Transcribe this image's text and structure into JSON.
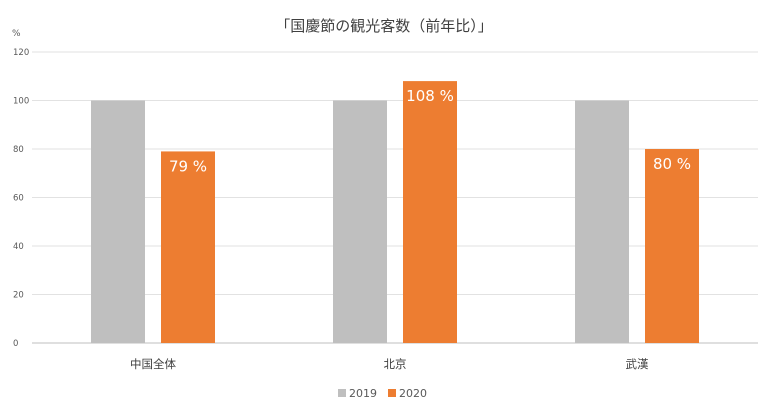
{
  "chart_data": {
    "type": "bar",
    "title": "「国慶節の観光客数（前年比）」",
    "ylabel": "%",
    "xlabel": "",
    "ylim": [
      0,
      120
    ],
    "yticks": [
      0,
      20,
      40,
      60,
      80,
      100,
      120
    ],
    "grid": true,
    "legend_position": "bottom",
    "categories": [
      "中国全体",
      "北京",
      "武漢"
    ],
    "series": [
      {
        "name": "2019",
        "color": "#bfbfbf",
        "values": [
          100,
          100,
          100
        ],
        "data_labels": [
          "",
          "",
          ""
        ]
      },
      {
        "name": "2020",
        "color": "#ed7d31",
        "values": [
          79,
          108,
          80
        ],
        "data_labels": [
          "79 %",
          "108 %",
          "80 %"
        ]
      }
    ]
  }
}
